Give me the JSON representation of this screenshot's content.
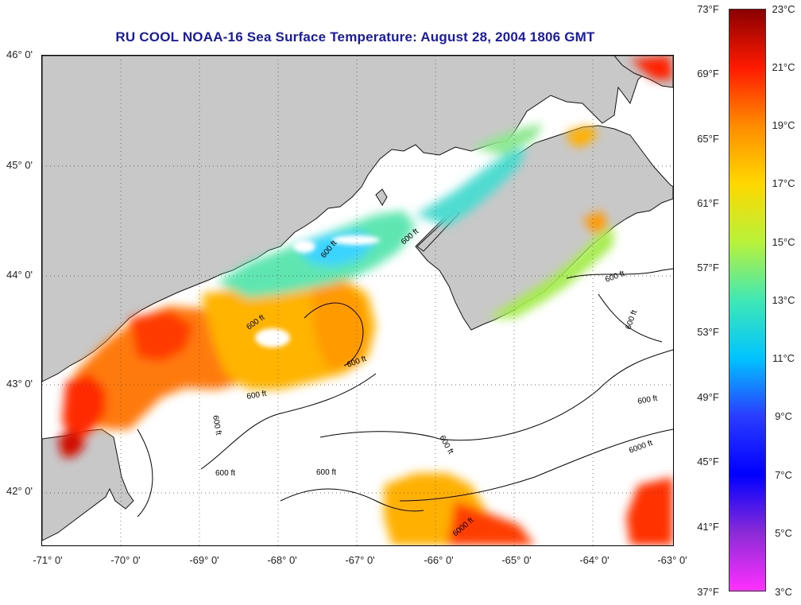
{
  "title": "RU COOL  NOAA-16  Sea Surface Temperature:  August 28, 2004 1806 GMT",
  "latitude_labels": [
    "46° 0'",
    "45° 0'",
    "44° 0'",
    "43° 0'",
    "42° 0'"
  ],
  "longitude_labels": [
    "-71° 0'",
    "-70° 0'",
    "-69° 0'",
    "-68° 0'",
    "-67° 0'",
    "-66° 0'",
    "-65° 0'",
    "-64° 0'",
    "-63° 0'"
  ],
  "contour_labels": [
    "600 ft",
    "600 ft",
    "600 ft",
    "600 ft",
    "600 ft",
    "600 ft",
    "600 ft",
    "600 ft",
    "600 ft",
    "6000 ft",
    "6000 ft",
    "600 ft",
    "600 ft",
    "600 ft"
  ],
  "colorbar": {
    "fahrenheit_labels": [
      "73°F",
      "69°F",
      "65°F",
      "61°F",
      "57°F",
      "53°F",
      "49°F",
      "45°F",
      "41°F",
      "37°F"
    ],
    "celsius_labels": [
      "23°C",
      "21°C",
      "19°C",
      "17°C",
      "15°C",
      "13°C",
      "11°C",
      "9°C",
      "7°C",
      "5°C",
      "3°C"
    ],
    "colors": [
      "#8a0000",
      "#ff1a00",
      "#ff8c00",
      "#ffd800",
      "#b8f23a",
      "#40e8b4",
      "#00c4ff",
      "#2a3cff",
      "#0000ff",
      "#8a2bd6",
      "#ff30ff"
    ]
  },
  "colors": {
    "land": "#c8c8c8",
    "no_data": "#ffffff",
    "title": "#1a1aa8"
  }
}
